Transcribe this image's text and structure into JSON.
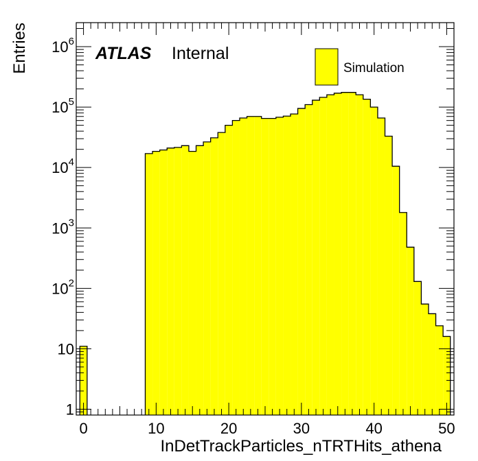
{
  "chart_data": {
    "type": "bar",
    "subtype": "histogram",
    "title": "",
    "xlabel": "InDetTrackParticles_nTRTHits_athena",
    "ylabel": "Entries",
    "x_scale": "linear",
    "y_scale": "log",
    "xlim": [
      -1,
      51
    ],
    "ylim": [
      0.8,
      2500000
    ],
    "x_ticks": [
      0,
      10,
      20,
      30,
      40,
      50
    ],
    "x_tick_labels": [
      "0",
      "10",
      "20",
      "30",
      "40",
      "50"
    ],
    "y_ticks": [
      1,
      10,
      100,
      1000,
      10000,
      100000,
      1000000
    ],
    "y_tick_labels": [
      {
        "base": "1",
        "exp": ""
      },
      {
        "base": "10",
        "exp": ""
      },
      {
        "base": "10",
        "exp": "2"
      },
      {
        "base": "10",
        "exp": "3"
      },
      {
        "base": "10",
        "exp": "4"
      },
      {
        "base": "10",
        "exp": "5"
      },
      {
        "base": "10",
        "exp": "6"
      }
    ],
    "bin_width": 1,
    "bin_centers": [
      0,
      9,
      10,
      11,
      12,
      13,
      14,
      15,
      16,
      17,
      18,
      19,
      20,
      21,
      22,
      23,
      24,
      25,
      26,
      27,
      28,
      29,
      30,
      31,
      32,
      33,
      34,
      35,
      36,
      37,
      38,
      39,
      40,
      41,
      42,
      43,
      44,
      45,
      46,
      47,
      48,
      49,
      50
    ],
    "series": [
      {
        "name": "Simulation",
        "color": "#ffff00",
        "line_color": "#000000",
        "values": [
          11,
          17000,
          18500,
          19500,
          21000,
          21500,
          23000,
          18500,
          23000,
          26500,
          31000,
          38000,
          50000,
          60000,
          66000,
          70000,
          70000,
          65000,
          65000,
          68000,
          71000,
          77000,
          95000,
          110000,
          130000,
          145000,
          160000,
          170000,
          175000,
          175000,
          160000,
          135000,
          100000,
          66000,
          33000,
          10500,
          1800,
          480,
          130,
          55,
          38,
          24,
          16
        ]
      }
    ],
    "legend": {
      "position": "top-right",
      "entries": [
        "Simulation"
      ]
    },
    "annotations": {
      "atlas": "ATLAS",
      "internal": "Internal"
    },
    "grid": false
  }
}
